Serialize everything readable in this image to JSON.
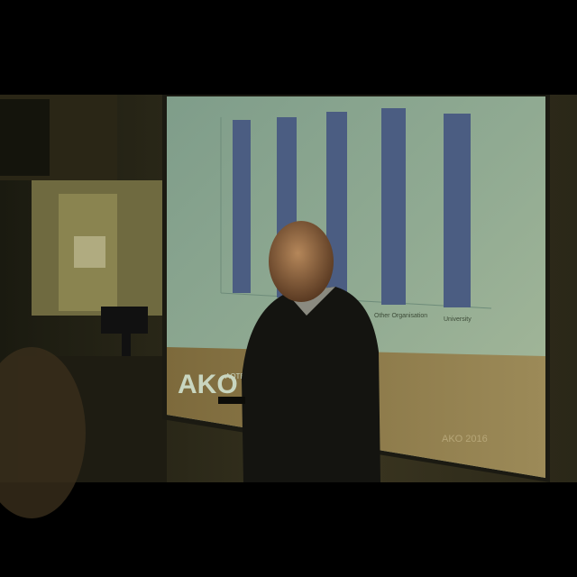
{
  "slide": {
    "logo": "AKO",
    "logo_subtitle": "AOTEARO",
    "categories": [
      "Other Organisation",
      "University"
    ],
    "footer": "AKO 2016"
  }
}
